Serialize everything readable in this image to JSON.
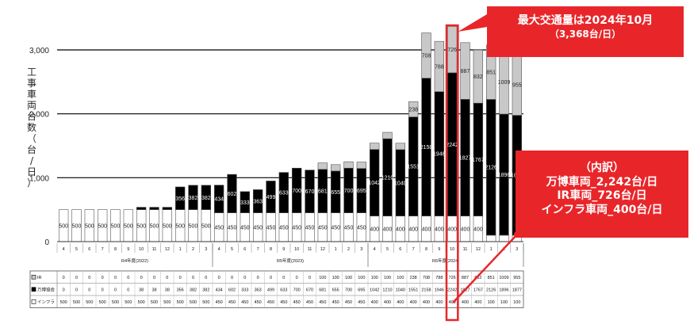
{
  "chart_data": {
    "type": "bar",
    "stacked": true,
    "ylabel": "工事車両台数（台/日）",
    "ylim": [
      0,
      3300
    ],
    "yticks": [
      "0",
      "1,000",
      "2,000",
      "3,000"
    ],
    "categories": [
      "4",
      "5",
      "6",
      "7",
      "8",
      "9",
      "10",
      "11",
      "12",
      "1",
      "2",
      "3",
      "4",
      "5",
      "6",
      "7",
      "8",
      "9",
      "10",
      "11",
      "12",
      "1",
      "2",
      "3",
      "4",
      "5",
      "6",
      "7",
      "8",
      "9",
      "10",
      "11",
      "12",
      "1",
      "2",
      "3"
    ],
    "groups": [
      {
        "label": "R4年度(2022)",
        "count": 12
      },
      {
        "label": "R5年度(2023)",
        "count": 12
      },
      {
        "label": "R6年度(2024)",
        "count": 12
      }
    ],
    "series": [
      {
        "name": "インフラ",
        "color": "#ffffff",
        "values": [
          500,
          500,
          500,
          500,
          500,
          500,
          500,
          500,
          500,
          500,
          500,
          500,
          450,
          450,
          450,
          450,
          450,
          450,
          450,
          450,
          450,
          450,
          450,
          450,
          400,
          400,
          400,
          400,
          400,
          400,
          400,
          400,
          400,
          100,
          100,
          100
        ]
      },
      {
        "name": "万博協会",
        "color": "#000000",
        "values": [
          0,
          0,
          0,
          0,
          0,
          0,
          38,
          38,
          38,
          356,
          382,
          382,
          434,
          602,
          333,
          363,
          499,
          633,
          700,
          670,
          681,
          655,
          700,
          695,
          1042,
          1210,
          1040,
          1551,
          2158,
          1946,
          2242,
          1827,
          1767,
          2126,
          1896,
          1877
        ]
      },
      {
        "name": "IR",
        "color": "#c8c8c8",
        "values": [
          0,
          0,
          0,
          0,
          0,
          0,
          0,
          0,
          0,
          0,
          0,
          0,
          0,
          0,
          0,
          0,
          0,
          0,
          0,
          0,
          100,
          100,
          100,
          100,
          100,
          100,
          100,
          238,
          708,
          788,
          726,
          887,
          832,
          851,
          1009,
          955
        ]
      }
    ],
    "highlight_index": 30
  },
  "callouts": {
    "peak_title": "最大交通量は2024年10月",
    "peak_sub": "（3,368台/日）",
    "breakdown_title": "（内訳）",
    "breakdown_1": "万博車両_2,242台/日",
    "breakdown_2": "IR車両_726台/日",
    "breakdown_3": "インフラ車両_400台/日"
  },
  "colors": {
    "highlight": "#e8262a"
  }
}
